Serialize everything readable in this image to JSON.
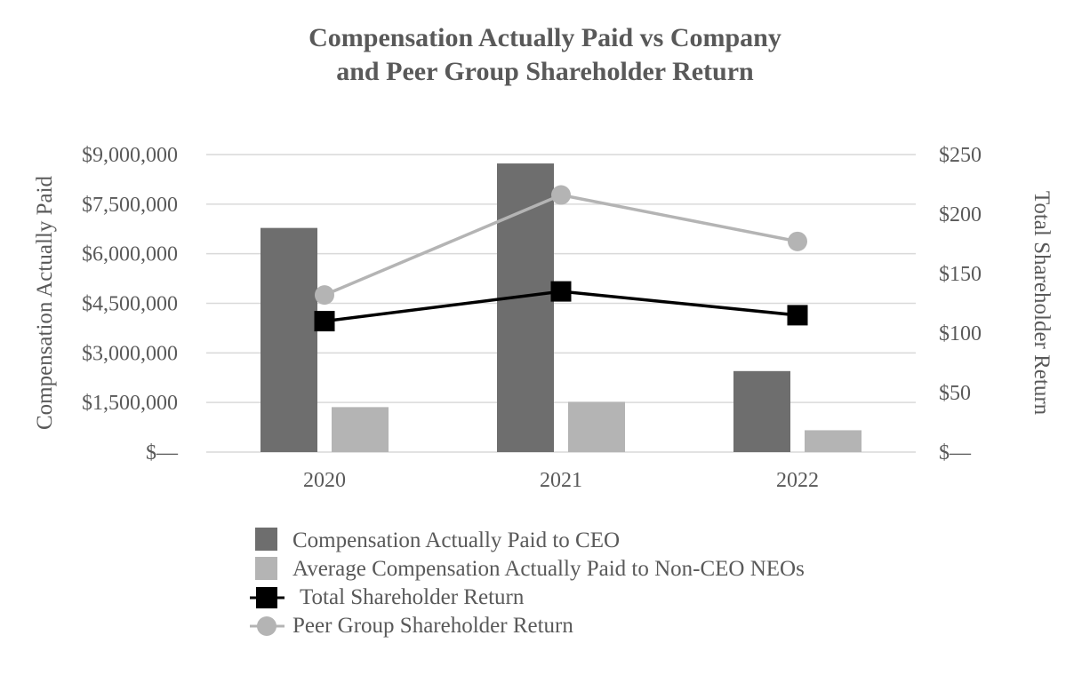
{
  "chart_data": {
    "type": "bar",
    "title_lines": [
      "Compensation Actually Paid vs Company",
      "and Peer Group Shareholder Return"
    ],
    "categories": [
      "2020",
      "2021",
      "2022"
    ],
    "y_left": {
      "label": "Compensation Actually Paid",
      "ylim": [
        0,
        9000000
      ],
      "ticks": [
        0,
        1500000,
        3000000,
        4500000,
        6000000,
        7500000,
        9000000
      ],
      "tick_labels": [
        "$—",
        "$1,500,000",
        "$3,000,000",
        "$4,500,000",
        "$6,000,000",
        "$7,500,000",
        "$9,000,000"
      ]
    },
    "y_right": {
      "label": "Total Shareholder Return",
      "ylim": [
        0,
        250
      ],
      "ticks": [
        0,
        50,
        100,
        150,
        200,
        250
      ],
      "tick_labels": [
        "$—",
        "$50",
        "$100",
        "$150",
        "$200",
        "$250"
      ]
    },
    "series": [
      {
        "name": "Compensation Actually Paid to CEO",
        "type": "bar",
        "axis": "left",
        "color": "#6e6e6e",
        "values": [
          6780000,
          8730000,
          2450000
        ]
      },
      {
        "name": "Average Compensation Actually Paid to Non-CEO NEOs",
        "type": "bar",
        "axis": "left",
        "color": "#b4b4b4",
        "values": [
          1360000,
          1520000,
          660000
        ]
      },
      {
        "name": "Total Shareholder Return",
        "type": "line",
        "marker": "square",
        "axis": "right",
        "color": "#000000",
        "values": [
          110,
          135,
          115
        ]
      },
      {
        "name": "Peer Group Shareholder Return",
        "type": "line",
        "marker": "circle",
        "axis": "right",
        "color": "#b4b4b4",
        "values": [
          132,
          216,
          177
        ]
      }
    ],
    "grid": true,
    "legend_position": "bottom"
  }
}
